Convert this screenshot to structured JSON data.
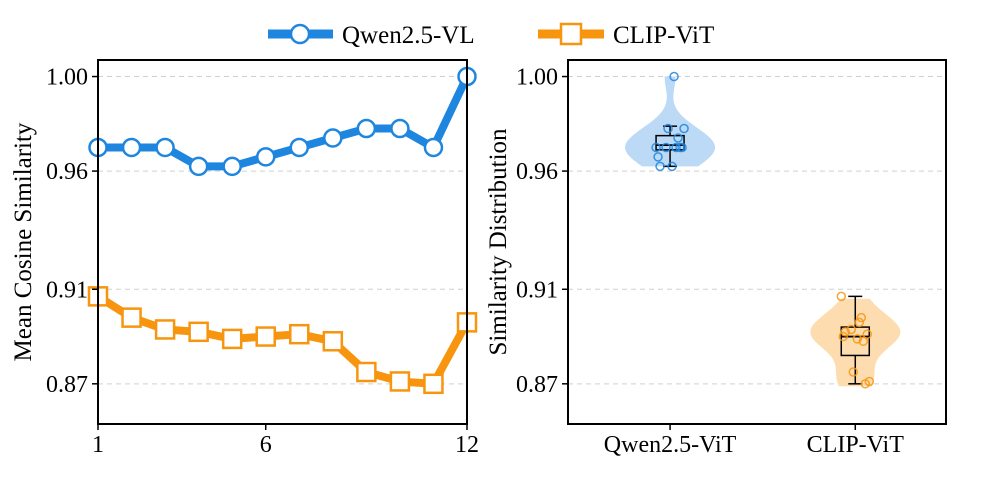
{
  "legend": [
    {
      "label": "Qwen2.5-VL",
      "color": "#1f86e0",
      "marker": "circle"
    },
    {
      "label": "CLIP-ViT",
      "color": "#f7950f",
      "marker": "square"
    }
  ],
  "chart_data": [
    {
      "type": "line",
      "ylabel": "Mean Cosine Similarity",
      "xlabel": "",
      "xlim": [
        1,
        12
      ],
      "ylim": [
        0.853,
        1.007
      ],
      "xticks": [
        1,
        6,
        12
      ],
      "xtick_labels": [
        "1",
        "6",
        "12"
      ],
      "yticks": [
        0.87,
        0.91,
        0.96,
        1.0
      ],
      "ytick_labels": [
        "0.87",
        "0.91",
        "0.96",
        "1.00"
      ],
      "grid": "horizontal dashed",
      "series": [
        {
          "name": "Qwen2.5-VL",
          "x": [
            1,
            2,
            3,
            4,
            5,
            6,
            7,
            8,
            9,
            10,
            11,
            12
          ],
          "values": [
            0.97,
            0.97,
            0.97,
            0.962,
            0.962,
            0.966,
            0.97,
            0.974,
            0.978,
            0.978,
            0.97,
            1.0
          ]
        },
        {
          "name": "CLIP-ViT",
          "x": [
            1,
            2,
            3,
            4,
            5,
            6,
            7,
            8,
            9,
            10,
            11,
            12
          ],
          "values": [
            0.907,
            0.898,
            0.893,
            0.892,
            0.889,
            0.89,
            0.891,
            0.888,
            0.875,
            0.871,
            0.87,
            0.896
          ]
        }
      ]
    },
    {
      "type": "violin",
      "ylabel": "Similarity Distribution",
      "ylim": [
        0.853,
        1.007
      ],
      "yticks": [
        0.87,
        0.91,
        0.96,
        1.0
      ],
      "ytick_labels": [
        "0.87",
        "0.91",
        "0.96",
        "1.00"
      ],
      "grid": "horizontal dashed",
      "categories": [
        "Qwen2.5-ViT",
        "CLIP-ViT"
      ],
      "series": [
        {
          "name": "Qwen2.5-ViT",
          "points": [
            0.97,
            0.97,
            0.97,
            0.962,
            0.962,
            0.966,
            0.97,
            0.974,
            0.978,
            0.978,
            0.97,
            1.0
          ],
          "box": {
            "whisker_low": 0.962,
            "q1": 0.969,
            "median": 0.971,
            "q3": 0.975,
            "whisker_high": 0.979
          },
          "kde_range": [
            0.962,
            1.0
          ]
        },
        {
          "name": "CLIP-ViT",
          "points": [
            0.907,
            0.898,
            0.893,
            0.892,
            0.889,
            0.89,
            0.891,
            0.888,
            0.875,
            0.871,
            0.87,
            0.896
          ],
          "box": {
            "whisker_low": 0.87,
            "q1": 0.882,
            "median": 0.89,
            "q3": 0.894,
            "whisker_high": 0.907
          },
          "kde_range": [
            0.869,
            0.906
          ]
        }
      ]
    }
  ]
}
